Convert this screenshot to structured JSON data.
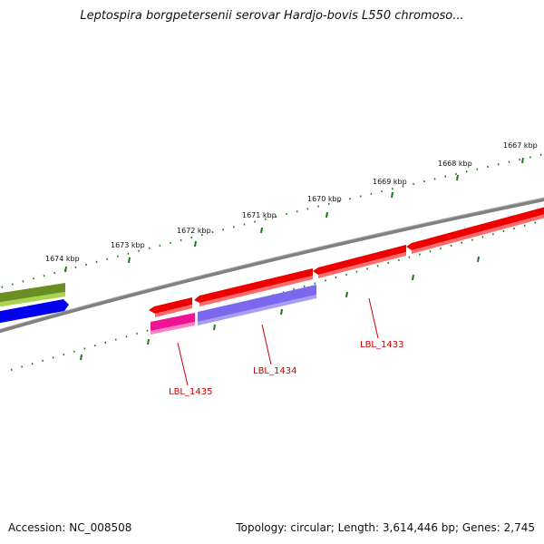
{
  "title": "Leptospira borgpetersenii serovar Hardjo-bovis L550 chromoso...",
  "footer": {
    "accession": "Accession: NC_008508",
    "summary": "Topology: circular; Length: 3,614,446 bp; Genes: 2,745"
  },
  "scale_labels": [
    "1674 kbp",
    "1673 kbp",
    "1672 kbp",
    "1671 kbp",
    "1670 kbp",
    "1669 kbp",
    "1668 kbp",
    "1667 kbp"
  ],
  "gene_labels": [
    "LBL_1435",
    "LBL_1434",
    "LBL_1433"
  ],
  "colors": {
    "backbone": "#808080",
    "tick": "#1a7a1a",
    "label": "#cc0000",
    "cds_forward": "#ee0000",
    "olive_feature": "#6b8e23",
    "blue_feature": "#0000ee",
    "pink_feature": "#ee1493",
    "purple_feature": "#7b68ee"
  }
}
